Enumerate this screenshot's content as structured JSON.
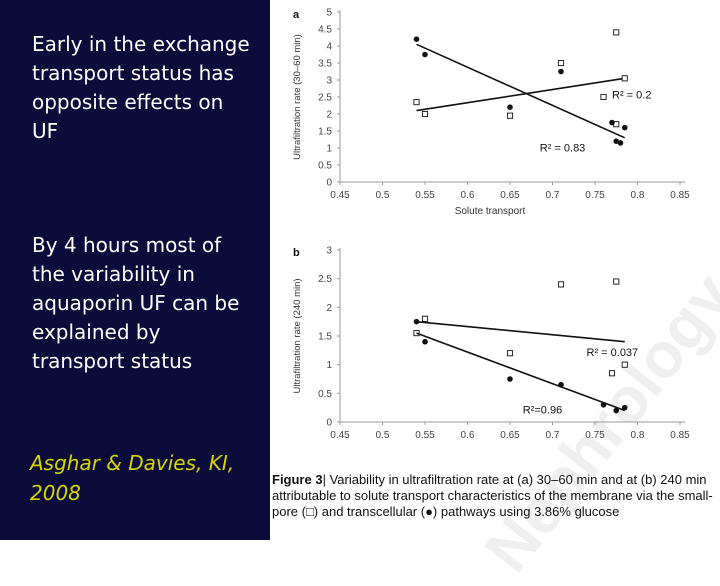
{
  "left_panel": {
    "point1": "Early in the exchange transport status has opposite effects on UF",
    "point2": "By 4 hours most of the variability in aquaporin UF can be explained by transport status",
    "citation": "Asghar & Davies, KI, 2008"
  },
  "watermark": {
    "text": "Nephrology"
  },
  "caption": {
    "figure_label": "Figure 3",
    "text": "| Variability in ultrafiltration rate at (a) 30–60 min and at (b) 240 min attributable to solute transport characteristics of the membrane via the small-pore (□) and transcellular (●) pathways using 3.86% glucose"
  },
  "colors": {
    "panel_bg": "#0c0c3a",
    "text": "#ffffff",
    "citation": "#d6d600",
    "ink": "#111111"
  },
  "chart_data": [
    {
      "type": "scatter",
      "panel_label": "a",
      "xlabel": "Solute transport",
      "ylabel": "Ultrafiltration rate (30–60 min)",
      "xlim": [
        0.45,
        0.85
      ],
      "ylim": [
        0,
        5
      ],
      "xticks": [
        "0.45",
        "0.5",
        "0.55",
        "0.6",
        "0.65",
        "0.7",
        "0.75",
        "0.8",
        "0.85"
      ],
      "yticks": [
        "0",
        "0.5",
        "1",
        "1.5",
        "2",
        "2.5",
        "3",
        "3.5",
        "4",
        "4.5",
        "5"
      ],
      "series": [
        {
          "marker": "open-square",
          "points": [
            [
              0.54,
              2.35
            ],
            [
              0.55,
              2.0
            ],
            [
              0.65,
              1.95
            ],
            [
              0.71,
              3.5
            ],
            [
              0.76,
              2.5
            ],
            [
              0.775,
              1.7
            ],
            [
              0.775,
              4.4
            ],
            [
              0.785,
              3.05
            ]
          ],
          "fit": [
            [
              0.54,
              2.1
            ],
            [
              0.785,
              3.05
            ]
          ],
          "annotation": "R² = 0.2"
        },
        {
          "marker": "filled-circle",
          "points": [
            [
              0.54,
              4.2
            ],
            [
              0.55,
              3.75
            ],
            [
              0.65,
              2.2
            ],
            [
              0.71,
              3.25
            ],
            [
              0.77,
              1.75
            ],
            [
              0.775,
              1.2
            ],
            [
              0.78,
              1.15
            ],
            [
              0.785,
              1.6
            ]
          ],
          "fit": [
            [
              0.54,
              4.05
            ],
            [
              0.785,
              1.3
            ]
          ],
          "annotation": "R² = 0.83"
        }
      ]
    },
    {
      "type": "scatter",
      "panel_label": "b",
      "xlabel": "",
      "ylabel": "Ultrafiltration rate (240 min)",
      "xlim": [
        0.45,
        0.85
      ],
      "ylim": [
        0,
        3
      ],
      "xticks": [
        "0.45",
        "0.5",
        "0.55",
        "0.6",
        "0.65",
        "0.7",
        "0.75",
        "0.8",
        "0.85"
      ],
      "yticks": [
        "0",
        "0.5",
        "1",
        "1.5",
        "2",
        "2.5",
        "3"
      ],
      "series": [
        {
          "marker": "open-square",
          "points": [
            [
              0.54,
              1.55
            ],
            [
              0.55,
              1.8
            ],
            [
              0.65,
              1.2
            ],
            [
              0.71,
              2.4
            ],
            [
              0.77,
              0.85
            ],
            [
              0.775,
              2.45
            ],
            [
              0.785,
              1.0
            ]
          ],
          "fit": [
            [
              0.54,
              1.75
            ],
            [
              0.785,
              1.4
            ]
          ],
          "annotation": "R² = 0.037"
        },
        {
          "marker": "filled-circle",
          "points": [
            [
              0.54,
              1.75
            ],
            [
              0.55,
              1.4
            ],
            [
              0.65,
              0.75
            ],
            [
              0.71,
              0.65
            ],
            [
              0.76,
              0.3
            ],
            [
              0.775,
              0.2
            ],
            [
              0.785,
              0.25
            ]
          ],
          "fit": [
            [
              0.54,
              1.55
            ],
            [
              0.785,
              0.2
            ]
          ],
          "annotation": "R²=0.96"
        }
      ]
    }
  ]
}
